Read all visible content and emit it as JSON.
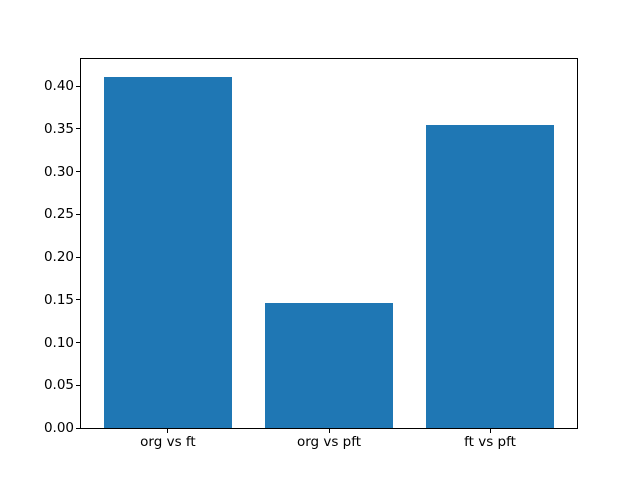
{
  "figure": {
    "background": "#ffffff"
  },
  "chart_data": {
    "type": "bar",
    "title": "",
    "xlabel": "",
    "ylabel": "",
    "categories": [
      "org vs ft",
      "org vs pft",
      "ft vs pft"
    ],
    "values": [
      0.411,
      0.146,
      0.355
    ],
    "bar_color": "#1f77b4",
    "bar_width_fraction": 0.8,
    "xlim": [
      -0.54,
      2.54
    ],
    "ylim": [
      0,
      0.4316
    ],
    "yticks": [
      0.0,
      0.05,
      0.1,
      0.15,
      0.2,
      0.25,
      0.3,
      0.35,
      0.4
    ],
    "ytick_labels": [
      "0.00",
      "0.05",
      "0.10",
      "0.15",
      "0.20",
      "0.25",
      "0.30",
      "0.35",
      "0.40"
    ],
    "grid": false,
    "legend": null
  }
}
